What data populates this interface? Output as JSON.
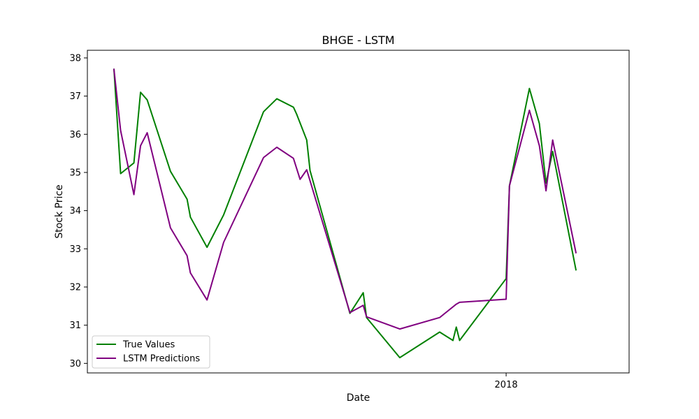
{
  "chart_data": {
    "type": "line",
    "title": "BHGE - LSTM",
    "xlabel": "Date",
    "ylabel": "Stock Price",
    "ylim": [
      29.75,
      38.2
    ],
    "yticks": [
      30,
      31,
      32,
      33,
      34,
      35,
      36,
      37,
      38
    ],
    "xtick_labels": [
      "2018"
    ],
    "xlim": [
      "2017-08-28",
      "2018-02-07"
    ],
    "xtick_dates": [
      "2018-01-01"
    ],
    "grid": false,
    "legend_position": "lower-left",
    "colors": {
      "true_values": "#008000",
      "lstm": "#800080"
    },
    "series": [
      {
        "name": "True Values",
        "color": "#008000",
        "x": [
          "2017-09-05",
          "2017-09-07",
          "2017-09-11",
          "2017-09-13",
          "2017-09-15",
          "2017-09-22",
          "2017-09-27",
          "2017-09-28",
          "2017-10-03",
          "2017-10-08",
          "2017-10-20",
          "2017-10-24",
          "2017-10-29",
          "2017-10-30",
          "2017-11-02",
          "2017-11-03",
          "2017-11-15",
          "2017-11-19",
          "2017-11-20",
          "2017-11-30",
          "2017-12-12",
          "2017-12-16",
          "2017-12-17",
          "2017-12-18",
          "2018-01-01",
          "2018-01-02",
          "2018-01-08",
          "2018-01-11",
          "2018-01-13",
          "2018-01-15",
          "2018-01-22"
        ],
        "values": [
          37.7,
          34.97,
          35.25,
          37.1,
          36.9,
          35.03,
          34.3,
          33.83,
          33.04,
          33.89,
          36.59,
          36.93,
          36.71,
          36.52,
          35.85,
          35.05,
          31.31,
          31.85,
          31.2,
          30.15,
          30.82,
          30.6,
          30.95,
          30.6,
          32.22,
          34.65,
          37.2,
          36.28,
          34.72,
          35.55,
          32.45
        ]
      },
      {
        "name": "LSTM Predictions",
        "color": "#800080",
        "x": [
          "2017-09-05",
          "2017-09-07",
          "2017-09-11",
          "2017-09-13",
          "2017-09-15",
          "2017-09-22",
          "2017-09-27",
          "2017-09-28",
          "2017-10-03",
          "2017-10-08",
          "2017-10-20",
          "2017-10-24",
          "2017-10-29",
          "2017-10-31",
          "2017-11-02",
          "2017-11-15",
          "2017-11-19",
          "2017-11-20",
          "2017-11-30",
          "2017-12-12",
          "2017-12-17",
          "2017-12-18",
          "2018-01-01",
          "2018-01-02",
          "2018-01-08",
          "2018-01-11",
          "2018-01-13",
          "2018-01-15",
          "2018-01-22"
        ],
        "values": [
          37.7,
          36.1,
          34.42,
          35.7,
          36.04,
          33.55,
          32.82,
          32.37,
          31.66,
          33.17,
          35.39,
          35.66,
          35.37,
          34.82,
          35.07,
          31.33,
          31.52,
          31.22,
          30.9,
          31.2,
          31.55,
          31.6,
          31.68,
          34.65,
          36.63,
          35.7,
          34.52,
          35.85,
          32.9
        ]
      }
    ]
  }
}
